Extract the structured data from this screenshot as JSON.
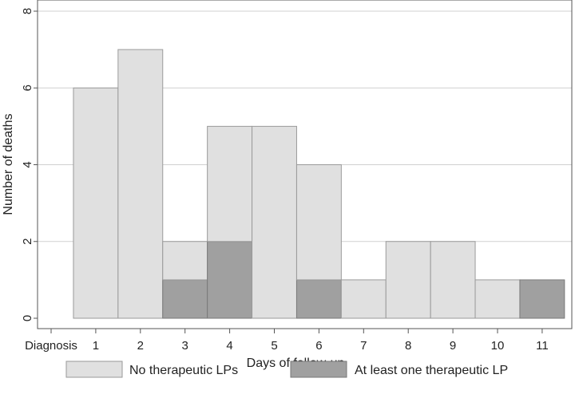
{
  "chart_data": {
    "type": "bar",
    "stacked": true,
    "title": "",
    "xlabel": "Days of follow-up",
    "ylabel": "Number of deaths",
    "ylim": [
      0,
      8
    ],
    "yticks": [
      0,
      2,
      4,
      6,
      8
    ],
    "categories": [
      "Diagnosis",
      "1",
      "2",
      "3",
      "4",
      "5",
      "6",
      "7",
      "8",
      "9",
      "10",
      "11"
    ],
    "bars": [
      {
        "day": 1,
        "no_lp": 6,
        "lp": 0
      },
      {
        "day": 2,
        "no_lp": 7,
        "lp": 0
      },
      {
        "day": 3,
        "no_lp": 1,
        "lp": 1
      },
      {
        "day": 4,
        "no_lp": 3,
        "lp": 2
      },
      {
        "day": 5,
        "no_lp": 5,
        "lp": 0
      },
      {
        "day": 6,
        "no_lp": 3,
        "lp": 1
      },
      {
        "day": 7,
        "no_lp": 1,
        "lp": 0
      },
      {
        "day": 8,
        "no_lp": 2,
        "lp": 0
      },
      {
        "day": 9,
        "no_lp": 2,
        "lp": 0
      },
      {
        "day": 10,
        "no_lp": 1,
        "lp": 0
      },
      {
        "day": 11,
        "no_lp": 0,
        "lp": 1
      }
    ],
    "series": [
      {
        "name": "No therapeutic LPs",
        "color": "#e0e0e0"
      },
      {
        "name": "At least one therapeutic LP",
        "color": "#a0a0a0"
      }
    ],
    "grid": true,
    "legend": "bottom"
  }
}
